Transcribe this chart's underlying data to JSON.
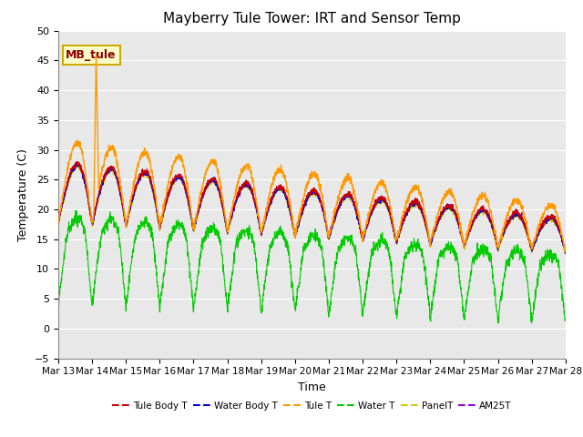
{
  "title": "Mayberry Tule Tower: IRT and Sensor Temp",
  "xlabel": "Time",
  "ylabel": "Temperature (C)",
  "ylim": [
    -5,
    50
  ],
  "yticks": [
    -5,
    0,
    5,
    10,
    15,
    20,
    25,
    30,
    35,
    40,
    45,
    50
  ],
  "plot_bg_color": "#e8e8e8",
  "grid_color": "white",
  "annotation_text": "MB_tule",
  "annotation_bg": "#ffffcc",
  "annotation_border": "#ccaa00",
  "series": [
    {
      "name": "Tule Body T",
      "color": "#cc0000",
      "lw": 1.0
    },
    {
      "name": "Water Body T",
      "color": "#0000cc",
      "lw": 1.0
    },
    {
      "name": "Tule T",
      "color": "#ff9900",
      "lw": 1.2
    },
    {
      "name": "Water T",
      "color": "#00cc00",
      "lw": 1.0
    },
    {
      "name": "PanelT",
      "color": "#cccc00",
      "lw": 1.0
    },
    {
      "name": "AM25T",
      "color": "#9900cc",
      "lw": 1.0
    }
  ],
  "n_days": 15,
  "points_per_day": 144,
  "start_day": 13,
  "month": "Mar",
  "xtick_days": [
    13,
    14,
    15,
    16,
    17,
    18,
    19,
    20,
    21,
    22,
    23,
    24,
    25,
    26,
    27,
    28
  ]
}
